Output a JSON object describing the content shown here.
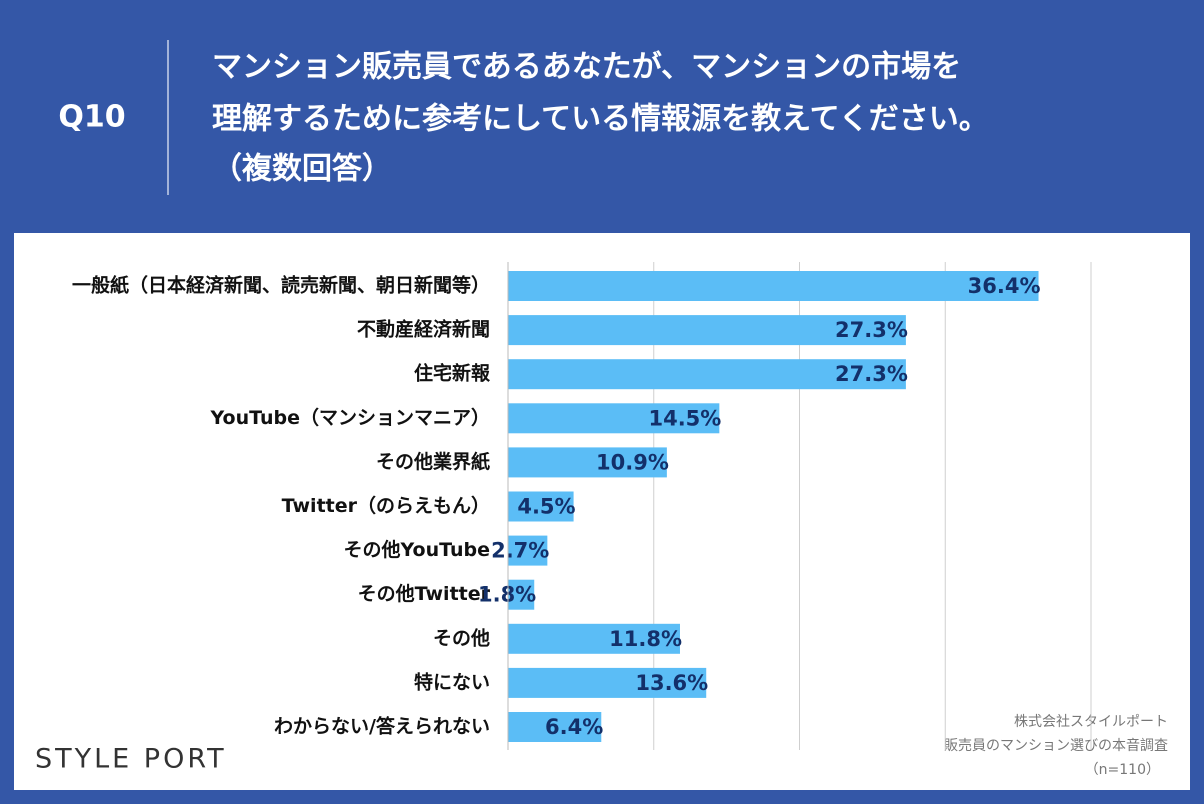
{
  "question_number": "Q10",
  "title": [
    "マンション販売員であるあなたが、マンションの市場を",
    "理解するために参考にしている情報源を教えてください。",
    "（複数回答）"
  ],
  "logo": "STYLE PORT",
  "footer": [
    "株式会社スタイルポート",
    "販売員のマンション選びの本音調査",
    "（n=110）"
  ],
  "chart_data": {
    "type": "bar",
    "orientation": "horizontal",
    "categories": [
      "一般紙（日本経済新聞、読売新聞、朝日新聞等）",
      "不動産経済新聞",
      "住宅新報",
      "YouTube（マンションマニア）",
      "その他業界紙",
      "Twitter（のらえもん）",
      "その他YouTube",
      "その他Twitter",
      "その他",
      "特にない",
      "わからない/答えられない"
    ],
    "values": [
      36.4,
      27.3,
      27.3,
      14.5,
      10.9,
      4.5,
      2.7,
      1.8,
      11.8,
      13.6,
      6.4
    ],
    "value_labels": [
      "36.4%",
      "27.3%",
      "27.3%",
      "14.5%",
      "10.9%",
      "4.5%",
      "2.7%",
      "1.8%",
      "11.8%",
      "13.6%",
      "6.4%"
    ],
    "color": "#5bbdf6",
    "xlim": [
      0,
      40
    ],
    "xticks": [
      0,
      10,
      20,
      30,
      40
    ],
    "grid": true
  }
}
